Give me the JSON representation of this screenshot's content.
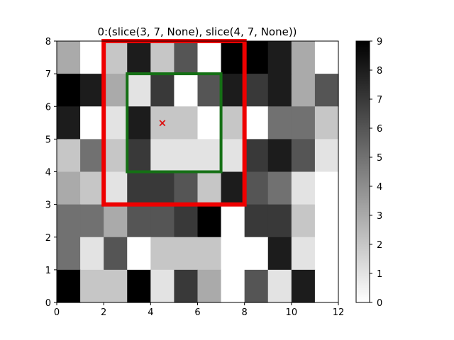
{
  "chart_data": {
    "type": "heatmap",
    "title": "0:(slice(3, 7, None), slice(4, 7, None))",
    "xlabel": "",
    "ylabel": "",
    "xlim": [
      0,
      12
    ],
    "ylim": [
      0,
      8
    ],
    "xticks": [
      "0",
      "2",
      "4",
      "6",
      "8",
      "10",
      "12"
    ],
    "yticks": [
      "0",
      "1",
      "2",
      "3",
      "4",
      "5",
      "6",
      "7",
      "8"
    ],
    "grid": false,
    "colormap": "Greys",
    "value_range": [
      0,
      9
    ],
    "colorbar_ticks": [
      "0",
      "1",
      "2",
      "3",
      "4",
      "5",
      "6",
      "7",
      "8",
      "9"
    ],
    "rows_top_to_bottom": [
      [
        3,
        0,
        2,
        8,
        2,
        6,
        0,
        9,
        9,
        8,
        3,
        0
      ],
      [
        9,
        8,
        3,
        1,
        7,
        0,
        6,
        8,
        7,
        8,
        3,
        6
      ],
      [
        8,
        0,
        1,
        8,
        2,
        2,
        0,
        2,
        0,
        5,
        5,
        2
      ],
      [
        2,
        5,
        2,
        7,
        1,
        1,
        1,
        1,
        7,
        8,
        6,
        1
      ],
      [
        3,
        2,
        1,
        7,
        7,
        6,
        2,
        8,
        6,
        5,
        1,
        0
      ],
      [
        5,
        5,
        3,
        6,
        6,
        7,
        9,
        0,
        7,
        7,
        2,
        0
      ],
      [
        5,
        1,
        6,
        0,
        2,
        2,
        2,
        0,
        0,
        8,
        1,
        0
      ],
      [
        9,
        2,
        2,
        9,
        1,
        7,
        3,
        0,
        6,
        1,
        8,
        0
      ]
    ],
    "rectangles": [
      {
        "name": "outer-rect",
        "x": [
          2,
          8
        ],
        "y": [
          3,
          8
        ],
        "color": "#ee0000"
      },
      {
        "name": "inner-rect",
        "x": [
          3,
          7
        ],
        "y": [
          4,
          7
        ],
        "color": "#157015"
      }
    ],
    "marker": {
      "x": 4.5,
      "y": 5.5,
      "symbol": "×",
      "color": "#dd1111"
    }
  }
}
